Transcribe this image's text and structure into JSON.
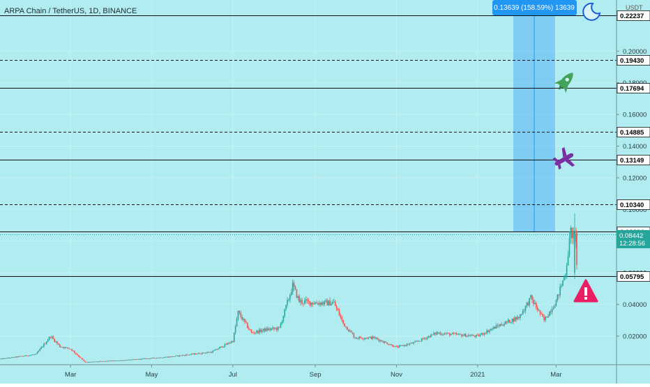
{
  "header": {
    "symbol_text": "ARPA Chain / TetherUS, 1D, BINANCE"
  },
  "axis": {
    "currency": "USDT",
    "price_ticks": [
      "0.02000",
      "0.04000",
      "0.06000",
      "0.08000",
      "0.10000",
      "0.12000",
      "0.14000",
      "0.16000",
      "0.18000",
      "0.20000"
    ],
    "time_ticks": [
      "Mar",
      "May",
      "Jul",
      "Sep",
      "Nov",
      "2021",
      "Mar"
    ]
  },
  "levels": [
    {
      "label": "0.22237",
      "style": "solid"
    },
    {
      "label": "0.19430",
      "style": "dashed"
    },
    {
      "label": "0.17694",
      "style": "solid"
    },
    {
      "label": "0.14885",
      "style": "dashed"
    },
    {
      "label": "0.13149",
      "style": "solid"
    },
    {
      "label": "0.10340",
      "style": "dashed"
    },
    {
      "label": "0.08604",
      "style": "solid"
    },
    {
      "label": "0.05795",
      "style": "solid"
    }
  ],
  "current_price": {
    "label": "0.08442",
    "countdown": "12:28:56",
    "color": "#26a69a"
  },
  "measure_tool": {
    "label": "0.13639 (158.59%) 13639",
    "color": "#2196f3"
  },
  "icons": [
    "moon-icon",
    "rocket-icon",
    "airplane-icon",
    "warning-icon"
  ],
  "colors": {
    "up": "#26a69a",
    "down": "#ef5350",
    "background": "#b1ecf1"
  },
  "chart_data": {
    "type": "candlestick",
    "title": "ARPA Chain / TetherUS, 1D, BINANCE",
    "x_range": [
      "2020-01-08",
      "2021-03-16"
    ],
    "ylim": [
      0.0,
      0.228
    ],
    "points": [
      {
        "date": "2020-01-08",
        "close": 0.0055
      },
      {
        "date": "2020-02-04",
        "close": 0.0085
      },
      {
        "date": "2020-02-15",
        "close": 0.02
      },
      {
        "date": "2020-02-22",
        "close": 0.0135
      },
      {
        "date": "2020-03-01",
        "close": 0.012
      },
      {
        "date": "2020-03-12",
        "close": 0.0035
      },
      {
        "date": "2020-04-15",
        "close": 0.005
      },
      {
        "date": "2020-05-15",
        "close": 0.007
      },
      {
        "date": "2020-06-15",
        "close": 0.01
      },
      {
        "date": "2020-07-01",
        "close": 0.017
      },
      {
        "date": "2020-07-05",
        "close": 0.035
      },
      {
        "date": "2020-07-15",
        "close": 0.022
      },
      {
        "date": "2020-07-25",
        "close": 0.024
      },
      {
        "date": "2020-08-05",
        "close": 0.025
      },
      {
        "date": "2020-08-15",
        "close": 0.052
      },
      {
        "date": "2020-08-20",
        "close": 0.042
      },
      {
        "date": "2020-09-01",
        "close": 0.041
      },
      {
        "date": "2020-09-15",
        "close": 0.041
      },
      {
        "date": "2020-09-22",
        "close": 0.028
      },
      {
        "date": "2020-10-01",
        "close": 0.019
      },
      {
        "date": "2020-10-15",
        "close": 0.019
      },
      {
        "date": "2020-11-01",
        "close": 0.013
      },
      {
        "date": "2020-11-15",
        "close": 0.016
      },
      {
        "date": "2020-12-01",
        "close": 0.022
      },
      {
        "date": "2020-12-15",
        "close": 0.021
      },
      {
        "date": "2021-01-01",
        "close": 0.02
      },
      {
        "date": "2021-01-15",
        "close": 0.026
      },
      {
        "date": "2021-02-01",
        "close": 0.032
      },
      {
        "date": "2021-02-10",
        "close": 0.044
      },
      {
        "date": "2021-02-20",
        "close": 0.03
      },
      {
        "date": "2021-03-01",
        "close": 0.042
      },
      {
        "date": "2021-03-08",
        "close": 0.06
      },
      {
        "date": "2021-03-12",
        "close": 0.086
      },
      {
        "date": "2021-03-15",
        "close": 0.082
      }
    ]
  }
}
